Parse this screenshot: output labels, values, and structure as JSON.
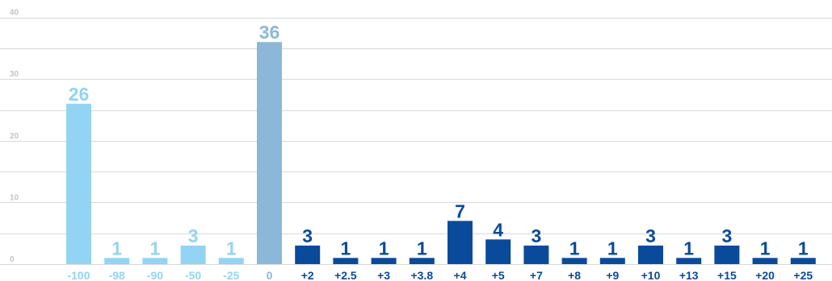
{
  "chart_data": {
    "type": "bar",
    "title": "",
    "xlabel": "",
    "ylabel": "",
    "ylim": [
      0,
      40
    ],
    "yticks": [
      0,
      10,
      20,
      30,
      40
    ],
    "grid": true,
    "categories": [
      "-100",
      "-98",
      "-90",
      "-50",
      "-25",
      "0",
      "+2",
      "+2.5",
      "+3",
      "+3.8",
      "+4",
      "+5",
      "+7",
      "+8",
      "+9",
      "+10",
      "+13",
      "+15",
      "+20",
      "+25"
    ],
    "values": [
      26,
      1,
      1,
      3,
      1,
      36,
      3,
      1,
      1,
      1,
      7,
      4,
      3,
      1,
      1,
      3,
      1,
      3,
      1,
      1
    ],
    "colors": {
      "negative": "#93d4f4",
      "zero": "#8bb8d8",
      "positive": "#0a4a9b",
      "grid": "#d9d9d9",
      "tick": "#c4c4c4"
    }
  }
}
